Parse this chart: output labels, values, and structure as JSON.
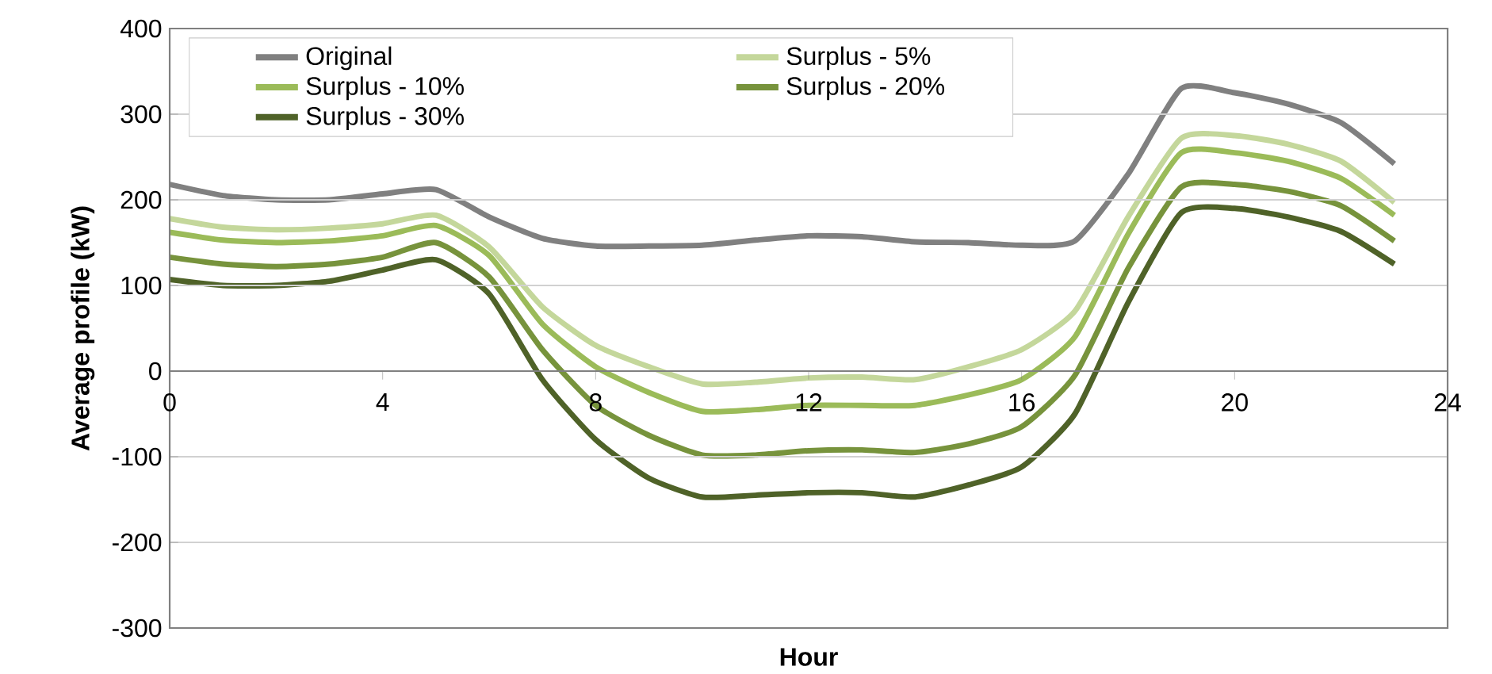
{
  "chart_data": {
    "type": "line",
    "xlabel": "Hour",
    "ylabel": "Average profile (kW)",
    "x": [
      0,
      1,
      2,
      3,
      4,
      5,
      6,
      7,
      8,
      9,
      10,
      11,
      12,
      13,
      14,
      15,
      16,
      17,
      18,
      19,
      20,
      21,
      22,
      23
    ],
    "series": [
      {
        "name": "Original",
        "color": "#808080",
        "values": [
          218,
          205,
          200,
          200,
          207,
          212,
          180,
          155,
          146,
          146,
          147,
          153,
          158,
          157,
          151,
          150,
          147,
          152,
          230,
          330,
          325,
          312,
          290,
          242
        ]
      },
      {
        "name": "Surplus - 5%",
        "color": "#c4d79b",
        "values": [
          178,
          168,
          165,
          167,
          172,
          182,
          145,
          75,
          30,
          5,
          -15,
          -13,
          -8,
          -7,
          -10,
          5,
          25,
          70,
          180,
          272,
          275,
          265,
          245,
          197
        ]
      },
      {
        "name": "Surplus - 10%",
        "color": "#9bbb59",
        "values": [
          162,
          153,
          150,
          152,
          158,
          170,
          135,
          55,
          5,
          -25,
          -47,
          -45,
          -40,
          -40,
          -40,
          -28,
          -10,
          40,
          160,
          255,
          255,
          245,
          225,
          182
        ]
      },
      {
        "name": "Surplus - 20%",
        "color": "#77933c",
        "values": [
          133,
          125,
          122,
          125,
          133,
          150,
          110,
          25,
          -40,
          -75,
          -98,
          -98,
          -93,
          -92,
          -95,
          -85,
          -65,
          -5,
          120,
          215,
          218,
          210,
          193,
          152
        ]
      },
      {
        "name": "Surplus - 30%",
        "color": "#4f6228",
        "values": [
          107,
          100,
          100,
          105,
          118,
          130,
          90,
          -10,
          -80,
          -125,
          -147,
          -145,
          -142,
          -142,
          -147,
          -133,
          -112,
          -50,
          80,
          185,
          190,
          180,
          163,
          125
        ]
      }
    ],
    "xlim": [
      0,
      24
    ],
    "ylim": [
      -300,
      400
    ],
    "xticks": [
      0,
      4,
      8,
      12,
      16,
      20,
      24
    ],
    "yticks": [
      -300,
      -200,
      -100,
      0,
      100,
      200,
      300,
      400
    ],
    "grid": "y",
    "legend": "top left",
    "line_style": "solid",
    "marker": "none"
  }
}
